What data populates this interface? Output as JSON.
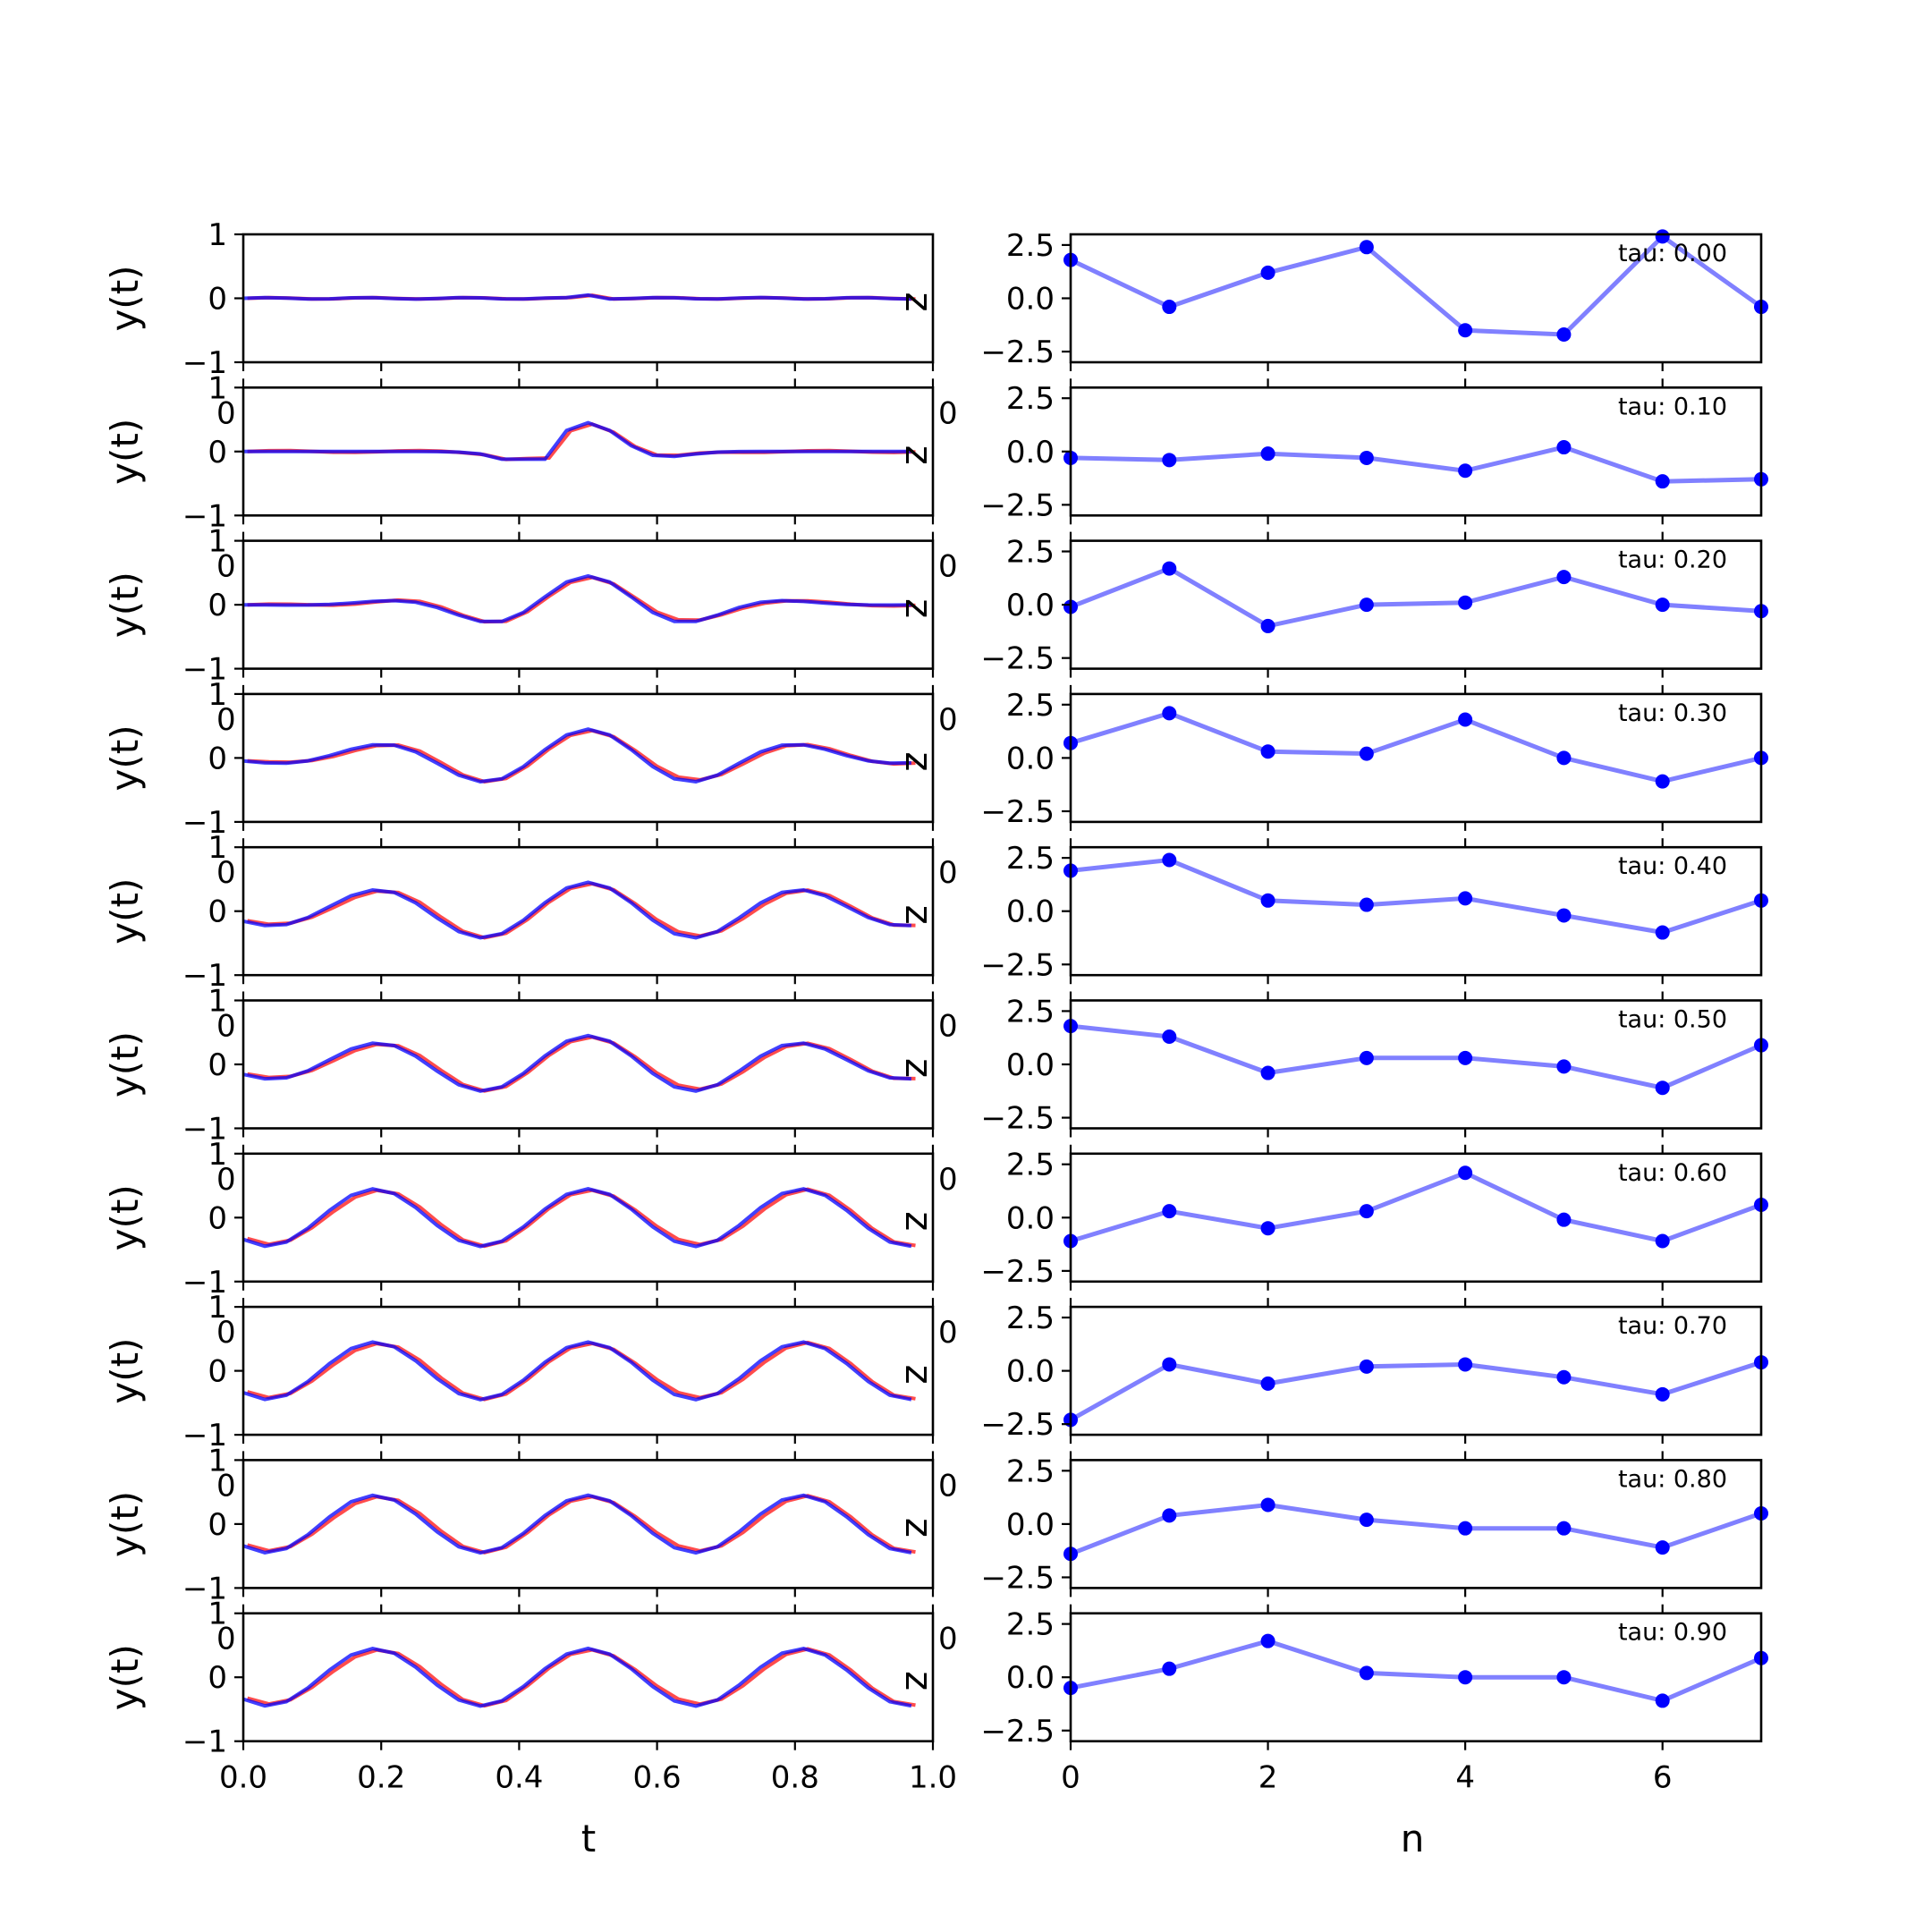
{
  "chart_data": {
    "type": "line",
    "left_column": {
      "xlabel": "t",
      "ylabel": "y(t)",
      "xlim": [
        0,
        1
      ],
      "ylim": [
        -1,
        1
      ],
      "x_ticks": [
        "0.0",
        "0.2",
        "0.4",
        "0.6",
        "0.8",
        "1.0"
      ],
      "y_ticks": [
        "1",
        "0",
        "−1"
      ],
      "stray_left_tick": "0",
      "stray_right_tick": "0",
      "right_label": "z",
      "series_colors": {
        "blue": "#0000ff",
        "red": "#ff0000",
        "overlap": "#7f007f"
      },
      "panels": [
        {
          "amp": 0.03,
          "envelope": "flat"
        },
        {
          "amp": 0.45,
          "envelope": "narrow"
        },
        {
          "amp": 0.45,
          "envelope": "medium"
        },
        {
          "amp": 0.45,
          "envelope": "wide"
        },
        {
          "amp": 0.45,
          "envelope": "wider"
        },
        {
          "amp": 0.45,
          "envelope": "wider"
        },
        {
          "amp": 0.45,
          "envelope": "full"
        },
        {
          "amp": 0.45,
          "envelope": "full"
        },
        {
          "amp": 0.45,
          "envelope": "full"
        },
        {
          "amp": 0.45,
          "envelope": "full"
        }
      ]
    },
    "right_column": {
      "xlabel": "n",
      "xlim": [
        0,
        7
      ],
      "ylim": [
        -3,
        3
      ],
      "x_ticks": [
        "0",
        "2",
        "4",
        "6"
      ],
      "y_ticks": [
        "2.5",
        "0.0",
        "−2.5"
      ],
      "line_color": "#8080ff",
      "marker_color": "#0000ff",
      "panels": [
        {
          "tau": "tau: 0.00",
          "values": [
            1.8,
            -0.4,
            1.2,
            2.4,
            -1.5,
            -1.7,
            2.9,
            -0.4
          ]
        },
        {
          "tau": "tau: 0.10",
          "values": [
            -0.3,
            -0.4,
            -0.1,
            -0.3,
            -0.9,
            0.2,
            -1.4,
            -1.3
          ]
        },
        {
          "tau": "tau: 0.20",
          "values": [
            -0.1,
            1.7,
            -1.0,
            0.0,
            0.1,
            1.3,
            0.0,
            -0.3
          ]
        },
        {
          "tau": "tau: 0.30",
          "values": [
            0.7,
            2.1,
            0.3,
            0.2,
            1.8,
            0.0,
            -1.1,
            0.0
          ]
        },
        {
          "tau": "tau: 0.40",
          "values": [
            1.9,
            2.4,
            0.5,
            0.3,
            0.6,
            -0.2,
            -1.0,
            0.5
          ]
        },
        {
          "tau": "tau: 0.50",
          "values": [
            1.8,
            1.3,
            -0.4,
            0.3,
            0.3,
            -0.1,
            -1.1,
            0.9
          ]
        },
        {
          "tau": "tau: 0.60",
          "values": [
            -1.1,
            0.3,
            -0.5,
            0.3,
            2.1,
            -0.1,
            -1.1,
            0.6
          ]
        },
        {
          "tau": "tau: 0.70",
          "values": [
            -2.3,
            0.3,
            -0.6,
            0.2,
            0.3,
            -0.3,
            -1.1,
            0.4
          ]
        },
        {
          "tau": "tau: 0.80",
          "values": [
            -1.4,
            0.4,
            0.9,
            0.2,
            -0.2,
            -0.2,
            -1.1,
            0.5
          ]
        },
        {
          "tau": "tau: 0.90",
          "values": [
            -0.5,
            0.4,
            1.7,
            0.2,
            0.0,
            0.0,
            -1.1,
            0.9
          ]
        }
      ]
    }
  }
}
